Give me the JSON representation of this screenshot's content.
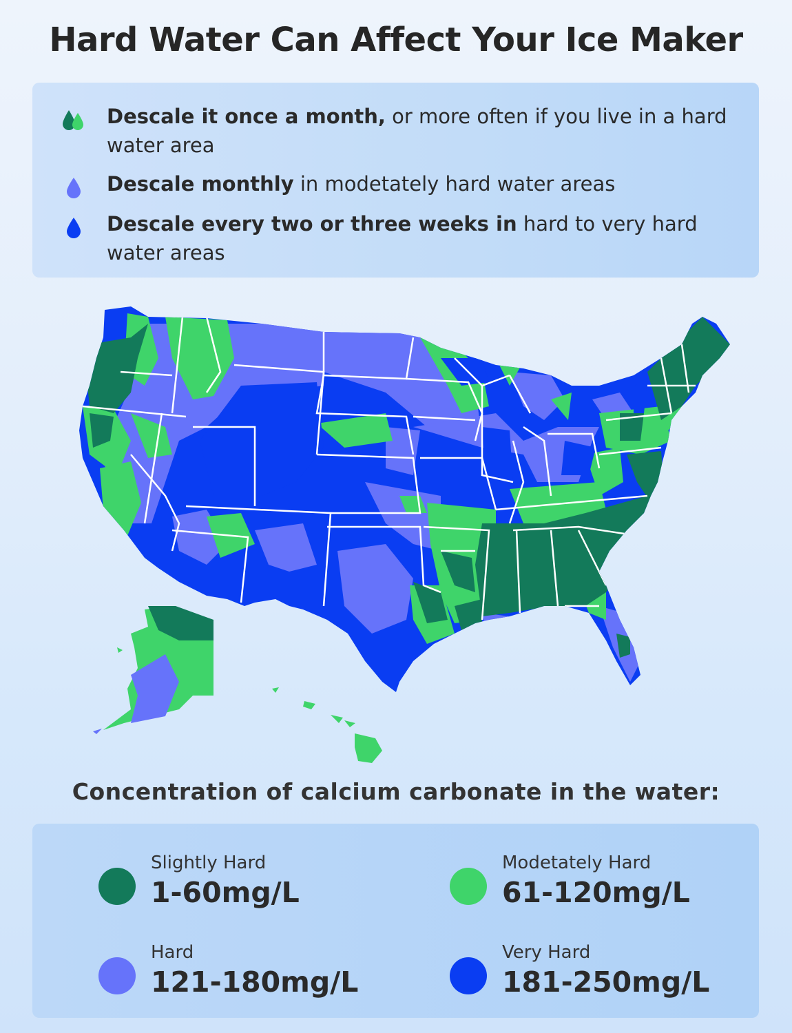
{
  "title": "Hard Water Can Affect Your Ice Maker",
  "tips": [
    {
      "bold": "Descale it once a month,",
      "rest": " or more often if you live in a hard water area",
      "icon": "double-drop-green-icon"
    },
    {
      "bold": "Descale monthly",
      "rest": " in modetately hard water areas",
      "icon": "drop-periwinkle-icon"
    },
    {
      "bold": "Descale every two or three weeks in",
      "rest": " hard to very hard water areas",
      "icon": "drop-blue-icon"
    }
  ],
  "map": {
    "subject": "US water hardness map",
    "colors": {
      "slightly_hard": "#137a5a",
      "moderately_hard": "#3fd46a",
      "hard": "#6673fa",
      "very_hard": "#0a3df2",
      "border": "#ffffff"
    }
  },
  "concentration_heading": "Concentration of calcium carbonate in the water:",
  "legend": [
    {
      "label": "Slightly Hard",
      "value": "1-60mg/L",
      "color": "#137a5a"
    },
    {
      "label": "Modetately Hard",
      "value": "61-120mg/L",
      "color": "#3fd46a"
    },
    {
      "label": "Hard",
      "value": "121-180mg/L",
      "color": "#6673fa"
    },
    {
      "label": "Very Hard",
      "value": "181-250mg/L",
      "color": "#0a3df2"
    }
  ]
}
